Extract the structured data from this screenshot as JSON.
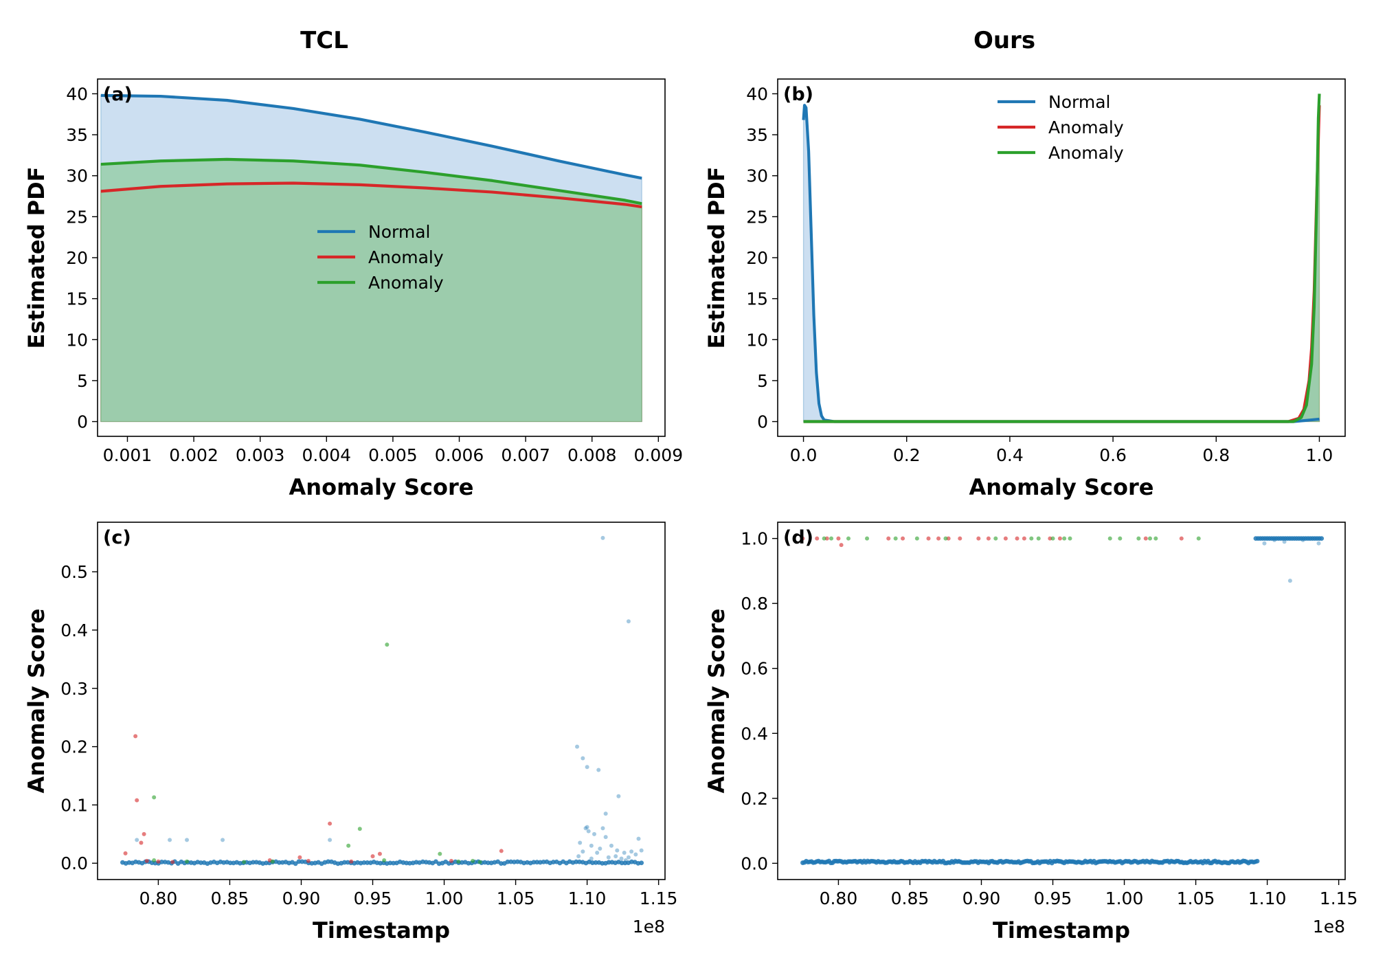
{
  "colors": {
    "normal": "#1f77b4",
    "anomaly_red": "#d62728",
    "anomaly_green": "#2ca02c",
    "olive_fill": "#a0a68f"
  },
  "chart_data": [
    {
      "id": "a",
      "type": "area",
      "panel_label": "(a)",
      "title": "TCL",
      "xlabel": "Anomaly Score",
      "ylabel": "Estimated PDF",
      "xlim": [
        0.00055,
        0.0091
      ],
      "ylim": [
        -1.8,
        41.8
      ],
      "xticks": [
        0.001,
        0.002,
        0.003,
        0.004,
        0.005,
        0.006,
        0.007,
        0.008,
        0.009
      ],
      "xtick_labels": [
        "0.001",
        "0.002",
        "0.003",
        "0.004",
        "0.005",
        "0.006",
        "0.007",
        "0.008",
        "0.009"
      ],
      "yticks": [
        0,
        5,
        10,
        15,
        20,
        25,
        30,
        35,
        40
      ],
      "ytick_labels": [
        "0",
        "5",
        "10",
        "15",
        "20",
        "25",
        "30",
        "35",
        "40"
      ],
      "legend": {
        "placement": "center",
        "entries": [
          "Normal",
          "Anomaly",
          "Anomaly"
        ]
      },
      "series": [
        {
          "name": "Normal",
          "color": "#1f77b4",
          "fill": "#c6dbef",
          "x": [
            0.0006,
            0.0015,
            0.0025,
            0.0035,
            0.0045,
            0.0055,
            0.0065,
            0.0075,
            0.0085,
            0.00875
          ],
          "y": [
            39.8,
            39.7,
            39.2,
            38.2,
            36.9,
            35.3,
            33.6,
            31.8,
            30.1,
            29.7
          ]
        },
        {
          "name": "Anomaly",
          "color": "#d62728",
          "fill": "#a0a68f",
          "x": [
            0.0006,
            0.0015,
            0.0025,
            0.0035,
            0.0045,
            0.0055,
            0.0065,
            0.0075,
            0.0085,
            0.00875
          ],
          "y": [
            28.1,
            28.7,
            29.0,
            29.1,
            28.9,
            28.5,
            28.0,
            27.3,
            26.5,
            26.2
          ]
        },
        {
          "name": "Anomaly",
          "color": "#2ca02c",
          "fill": "#9bcfae",
          "x": [
            0.0006,
            0.0015,
            0.0025,
            0.0035,
            0.0045,
            0.0055,
            0.0065,
            0.0075,
            0.0085,
            0.00875
          ],
          "y": [
            31.4,
            31.8,
            32.0,
            31.8,
            31.3,
            30.4,
            29.4,
            28.2,
            27.0,
            26.6
          ]
        }
      ]
    },
    {
      "id": "b",
      "type": "area",
      "panel_label": "(b)",
      "title": "Ours",
      "xlabel": "Anomaly Score",
      "ylabel": "Estimated PDF",
      "xlim": [
        -0.05,
        1.05
      ],
      "ylim": [
        -1.8,
        41.8
      ],
      "xticks": [
        0,
        0.2,
        0.4,
        0.6,
        0.8,
        1.0
      ],
      "xtick_labels": [
        "0.0",
        "0.2",
        "0.4",
        "0.6",
        "0.8",
        "1.0"
      ],
      "yticks": [
        0,
        5,
        10,
        15,
        20,
        25,
        30,
        35,
        40
      ],
      "ytick_labels": [
        "0",
        "5",
        "10",
        "15",
        "20",
        "25",
        "30",
        "35",
        "40"
      ],
      "legend": {
        "placement": "top-center",
        "entries": [
          "Normal",
          "Anomaly",
          "Anomaly"
        ]
      },
      "series": [
        {
          "name": "Normal",
          "color": "#1f77b4",
          "fill": "#c6dbef",
          "x": [
            0.0,
            0.002,
            0.005,
            0.01,
            0.015,
            0.02,
            0.025,
            0.03,
            0.035,
            0.04,
            0.06,
            0.5,
            0.95,
            1.0
          ],
          "y": [
            36.8,
            38.6,
            38.3,
            33.0,
            23.0,
            13.0,
            6.0,
            2.2,
            0.7,
            0.2,
            0.0,
            0.0,
            0.0,
            0.3
          ]
        },
        {
          "name": "Anomaly",
          "color": "#d62728",
          "fill": "#a0a68f",
          "x": [
            0.0,
            0.5,
            0.94,
            0.96,
            0.97,
            0.98,
            0.985,
            0.99,
            0.995,
            1.0
          ],
          "y": [
            0.0,
            0.0,
            0.0,
            0.4,
            1.5,
            5.0,
            9.0,
            16.0,
            28.0,
            38.6
          ]
        },
        {
          "name": "Anomaly",
          "color": "#2ca02c",
          "fill": "#9bcfae",
          "x": [
            0.0,
            0.5,
            0.95,
            0.965,
            0.975,
            0.985,
            0.99,
            0.995,
            0.998,
            1.0
          ],
          "y": [
            0.0,
            0.0,
            0.0,
            0.5,
            2.0,
            7.0,
            14.0,
            27.0,
            37.0,
            40.0
          ]
        }
      ]
    },
    {
      "id": "c",
      "type": "scatter",
      "panel_label": "(c)",
      "xlabel": "Timestamp",
      "ylabel": "Anomaly Score",
      "x_offset_label": "1e8",
      "xlim": [
        0.7575,
        1.1545
      ],
      "ylim": [
        -0.028,
        0.585
      ],
      "xticks": [
        0.8,
        0.85,
        0.9,
        0.95,
        1.0,
        1.05,
        1.1,
        1.15
      ],
      "xtick_labels": [
        "0.80",
        "0.85",
        "0.90",
        "0.95",
        "1.00",
        "1.05",
        "1.10",
        "1.15"
      ],
      "yticks": [
        0.0,
        0.1,
        0.2,
        0.3,
        0.4,
        0.5
      ],
      "ytick_labels": [
        "0.0",
        "0.1",
        "0.2",
        "0.3",
        "0.4",
        "0.5"
      ],
      "baseline": {
        "color": "#1f77b4",
        "x_from": 0.775,
        "x_to": 1.138,
        "y": 0.001,
        "count": 160
      },
      "series": [
        {
          "name": "Normal",
          "color": "#1f77b4",
          "points": [
            [
              0.785,
              0.04
            ],
            [
              0.808,
              0.04
            ],
            [
              0.82,
              0.04
            ],
            [
              0.845,
              0.04
            ],
            [
              0.92,
              0.04
            ],
            [
              1.093,
              0.2
            ],
            [
              1.097,
              0.18
            ],
            [
              1.1,
              0.165
            ],
            [
              1.108,
              0.16
            ],
            [
              1.105,
              0.05
            ],
            [
              1.113,
              0.085
            ],
            [
              1.111,
              0.558
            ],
            [
              1.122,
              0.115
            ],
            [
              1.129,
              0.415
            ],
            [
              1.099,
              0.06
            ],
            [
              1.101,
              0.055
            ],
            [
              1.1,
              0.062
            ],
            [
              1.095,
              0.035
            ],
            [
              1.103,
              0.03
            ],
            [
              1.111,
              0.06
            ],
            [
              1.097,
              0.02
            ],
            [
              1.107,
              0.018
            ],
            [
              1.113,
              0.045
            ],
            [
              1.117,
              0.03
            ],
            [
              1.12,
              0.012
            ],
            [
              1.126,
              0.018
            ],
            [
              1.131,
              0.02
            ],
            [
              1.136,
              0.042
            ],
            [
              1.138,
              0.022
            ],
            [
              1.124,
              0.008
            ],
            [
              1.129,
              0.01
            ],
            [
              1.134,
              0.015
            ],
            [
              1.094,
              0.012
            ],
            [
              1.103,
              0.008
            ],
            [
              1.109,
              0.025
            ],
            [
              1.115,
              0.01
            ],
            [
              1.121,
              0.022
            ],
            [
              1.127,
              0.005
            ]
          ]
        },
        {
          "name": "Anomaly",
          "color": "#d62728",
          "points": [
            [
              0.777,
              0.017
            ],
            [
              0.784,
              0.218
            ],
            [
              0.785,
              0.108
            ],
            [
              0.79,
              0.05
            ],
            [
              0.788,
              0.035
            ],
            [
              0.792,
              0.004
            ],
            [
              0.8,
              0.003
            ],
            [
              0.81,
              0.002
            ],
            [
              0.878,
              0.005
            ],
            [
              0.899,
              0.01
            ],
            [
              0.92,
              0.068
            ],
            [
              0.95,
              0.012
            ],
            [
              0.955,
              0.016
            ],
            [
              1.005,
              0.004
            ],
            [
              1.04,
              0.021
            ],
            [
              0.905,
              0.004
            ],
            [
              0.935,
              0.003
            ]
          ]
        },
        {
          "name": "Anomaly",
          "color": "#2ca02c",
          "points": [
            [
              0.797,
              0.113
            ],
            [
              0.797,
              0.005
            ],
            [
              0.82,
              0.003
            ],
            [
              0.86,
              0.002
            ],
            [
              0.933,
              0.03
            ],
            [
              0.941,
              0.059
            ],
            [
              0.96,
              0.375
            ],
            [
              0.958,
              0.005
            ],
            [
              0.997,
              0.016
            ],
            [
              1.01,
              0.003
            ],
            [
              1.02,
              0.004
            ],
            [
              1.025,
              0.002
            ],
            [
              0.88,
              0.003
            ]
          ]
        }
      ]
    },
    {
      "id": "d",
      "type": "scatter",
      "panel_label": "(d)",
      "xlabel": "Timestamp",
      "ylabel": "Anomaly Score",
      "x_offset_label": "1e8",
      "xlim": [
        0.7575,
        1.1545
      ],
      "ylim": [
        -0.05,
        1.05
      ],
      "xticks": [
        0.8,
        0.85,
        0.9,
        0.95,
        1.0,
        1.05,
        1.1,
        1.15
      ],
      "xtick_labels": [
        "0.80",
        "0.85",
        "0.90",
        "0.95",
        "1.00",
        "1.05",
        "1.10",
        "1.15"
      ],
      "yticks": [
        0.0,
        0.2,
        0.4,
        0.6,
        0.8,
        1.0
      ],
      "ytick_labels": [
        "0.0",
        "0.2",
        "0.4",
        "0.6",
        "0.8",
        "1.0"
      ],
      "baseline": {
        "color": "#1f77b4",
        "x_from": 0.775,
        "x_to": 1.093,
        "y": 0.004,
        "count": 260
      },
      "top_band": {
        "color": "#1f77b4",
        "x_from": 1.092,
        "x_to": 1.138,
        "y": 1.0,
        "count": 30
      },
      "series": [
        {
          "name": "Normal",
          "color": "#1f77b4",
          "points": [
            [
              1.098,
              0.985
            ],
            [
              1.112,
              0.99
            ],
            [
              1.116,
              0.87
            ],
            [
              1.136,
              0.985
            ],
            [
              1.105,
              0.995
            ],
            [
              1.125,
              0.995
            ]
          ]
        },
        {
          "name": "Anomaly",
          "color": "#d62728",
          "points": [
            [
              0.775,
              1.0
            ],
            [
              0.785,
              1.0
            ],
            [
              0.792,
              1.0
            ],
            [
              0.8,
              1.0
            ],
            [
              0.802,
              0.98
            ],
            [
              0.835,
              1.0
            ],
            [
              0.845,
              1.0
            ],
            [
              0.863,
              1.0
            ],
            [
              0.87,
              1.0
            ],
            [
              0.877,
              1.0
            ],
            [
              0.885,
              1.0
            ],
            [
              0.898,
              1.0
            ],
            [
              0.905,
              1.0
            ],
            [
              0.917,
              1.0
            ],
            [
              0.925,
              1.0
            ],
            [
              0.93,
              1.0
            ],
            [
              0.948,
              1.0
            ],
            [
              0.955,
              1.0
            ],
            [
              1.015,
              1.0
            ],
            [
              1.04,
              1.0
            ]
          ]
        },
        {
          "name": "Anomaly",
          "color": "#2ca02c",
          "points": [
            [
              0.79,
              1.0
            ],
            [
              0.795,
              1.0
            ],
            [
              0.807,
              1.0
            ],
            [
              0.82,
              1.0
            ],
            [
              0.84,
              1.0
            ],
            [
              0.855,
              1.0
            ],
            [
              0.875,
              1.0
            ],
            [
              0.91,
              1.0
            ],
            [
              0.935,
              1.0
            ],
            [
              0.94,
              1.0
            ],
            [
              0.95,
              1.0
            ],
            [
              0.958,
              1.0
            ],
            [
              0.962,
              1.0
            ],
            [
              0.99,
              1.0
            ],
            [
              0.997,
              1.0
            ],
            [
              1.01,
              1.0
            ],
            [
              1.018,
              1.0
            ],
            [
              1.022,
              1.0
            ],
            [
              1.052,
              1.0
            ]
          ]
        }
      ]
    }
  ]
}
